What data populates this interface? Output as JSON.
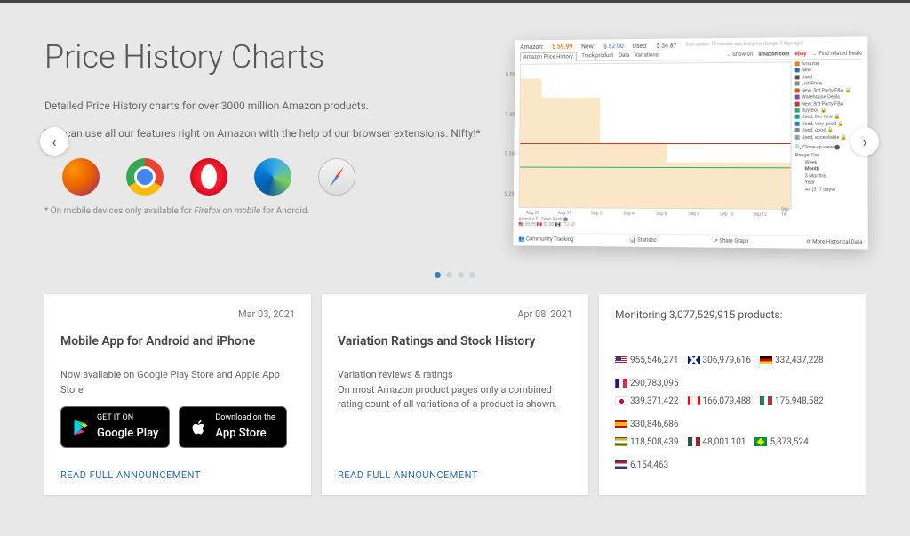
{
  "hero": {
    "title": "Price History Charts",
    "desc1": "Detailed Price History charts for over 3000 million Amazon products.",
    "desc2": "You can use all our features right on Amazon with the help of our browser extensions. Nifty!*",
    "footnote_prefix": "* On mobile devices only available for ",
    "footnote_em": "Firefox on mobile",
    "footnote_suffix": " for Android.",
    "browsers": [
      "firefox",
      "chrome",
      "opera",
      "edge",
      "safari"
    ]
  },
  "chart": {
    "amazon_label": "Amazon:",
    "amazon_price": "$ 59.99",
    "new_label": "New:",
    "new_price": "$ 52.00",
    "used_label": "Used:",
    "used_price": "$ 34.87",
    "meta": "(last update: 10 minutes ago, last price change: 3 days ago)",
    "tabs": [
      "Amazon Price History",
      "Track product",
      "Data",
      "Variations"
    ],
    "show_on": "→ Show on",
    "amazon_com": "amazon.com",
    "ebay": "ebay",
    "find_deals": "→ Find related Deals",
    "yticks": [
      "$ 58",
      "$ 48",
      "$ 38",
      "$ 28"
    ],
    "xticks": [
      "Aug 28",
      "Aug 31",
      "Sep 2",
      "Sep 4",
      "Sep 6",
      "Sep 8",
      "Sep 10",
      "Sep 12",
      "Sep 14"
    ],
    "legend": [
      {
        "c": "#e67e22",
        "t": "Amazon"
      },
      {
        "c": "#2b6cb0",
        "t": "New"
      },
      {
        "c": "#555",
        "t": "Used"
      },
      {
        "c": "#888",
        "t": "List Price"
      },
      {
        "c": "#d35400",
        "t": "New, 3rd Party FBA 🔒"
      },
      {
        "c": "#8e44ad",
        "t": "Warehouse Deals"
      },
      {
        "c": "#c0392b",
        "t": "New, 3rd Party FBA"
      },
      {
        "c": "#27ae60",
        "t": "Buy Box 🔒"
      },
      {
        "c": "#16a085",
        "t": "Used, like new 🔒"
      },
      {
        "c": "#2980b9",
        "t": "Used, very good 🔒"
      },
      {
        "c": "#7f8c8d",
        "t": "Used, good 🔒"
      },
      {
        "c": "#95a5a6",
        "t": "Used, acceptable 🔒"
      }
    ],
    "closeup": "🔍 Close-up view ⬤",
    "ranges": [
      "Day",
      "Week",
      "Month",
      "3 Months",
      "Year",
      "All (317 days)"
    ],
    "range_active": "Month",
    "sub_left_label": "America $",
    "sub_left_vals": "🇺🇸 59.99  🇨🇦 52.00  🇲🇽 112.53",
    "sub_rank": "Sales Rank ⬤",
    "footer": [
      "👥 Community Tracking",
      "📊 Statistic",
      "↗ Share Graph",
      "⟳ More Historical Data"
    ],
    "colors": {
      "area": "#f8d7a3",
      "red": "#c0392b",
      "green": "#27ae60"
    }
  },
  "dots": {
    "count": 4,
    "active": 0
  },
  "cards": [
    {
      "date": "Mar 03, 2021",
      "title": "Mobile App for Android and iPhone",
      "body": "Now available on Google Play Store and Apple App Store",
      "google_small": "GET IT ON",
      "google_big": "Google Play",
      "apple_small": "Download on the",
      "apple_big": "App Store",
      "link": "READ FULL ANNOUNCEMENT"
    },
    {
      "date": "Apr 08, 2021",
      "title": "Variation Ratings and Stock History",
      "body1": "Variation reviews & ratings",
      "body2": "On most Amazon product pages only a combined rating count of all variations of a product is shown.",
      "link": "READ FULL ANNOUNCEMENT"
    }
  ],
  "monitor": {
    "title_prefix": "Monitoring ",
    "total": "3,077,529,915",
    "title_suffix": " products:",
    "rows": [
      [
        {
          "f": "us",
          "n": "955,546,271"
        },
        {
          "f": "gb",
          "n": "306,979,616"
        },
        {
          "f": "de",
          "n": "332,437,228"
        },
        {
          "f": "fr",
          "n": "290,783,095"
        }
      ],
      [
        {
          "f": "jp",
          "n": "339,371,422"
        },
        {
          "f": "ca",
          "n": "166,079,488"
        },
        {
          "f": "it",
          "n": "176,948,582"
        },
        {
          "f": "es",
          "n": "330,846,686"
        }
      ],
      [
        {
          "f": "in",
          "n": "118,508,439"
        },
        {
          "f": "mx",
          "n": "48,001,101"
        },
        {
          "f": "br",
          "n": "5,873,524"
        },
        {
          "f": "nl",
          "n": "6,154,463"
        }
      ]
    ]
  }
}
